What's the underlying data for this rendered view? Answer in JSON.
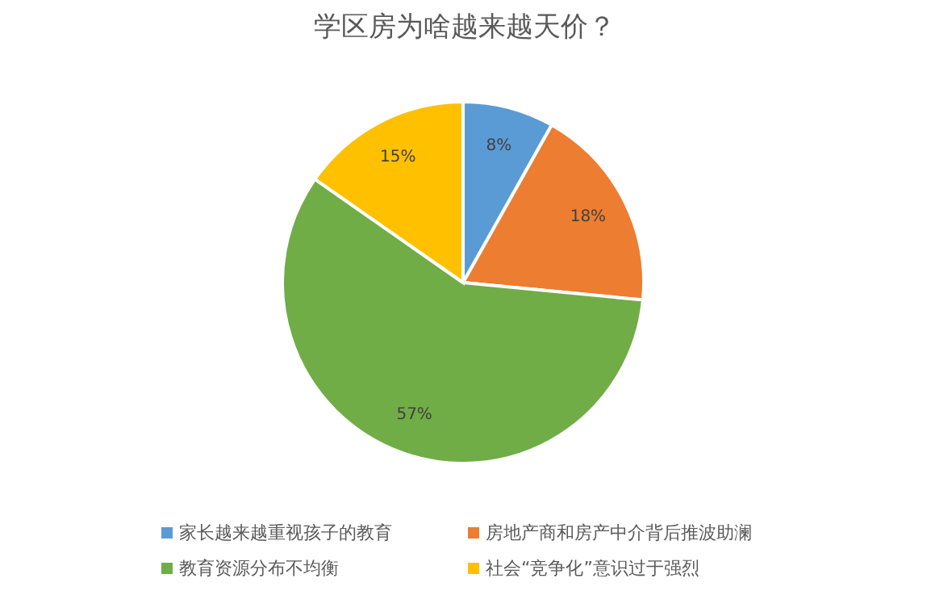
{
  "chart_data": {
    "type": "pie",
    "title": "学区房为啥越来越天价？",
    "categories": [
      "家长越来越重视孩子的教育",
      "房地产商和房产中介背后推波助澜",
      "教育资源分布不均衡",
      "社会“竞争化”意识过于强烈"
    ],
    "values": [
      8,
      18,
      57,
      15
    ],
    "colors": [
      "#5b9bd5",
      "#ed7d31",
      "#70ad47",
      "#ffc000"
    ],
    "value_labels": [
      "8%",
      "18%",
      "57%",
      "15%"
    ],
    "legend": "bottom"
  }
}
